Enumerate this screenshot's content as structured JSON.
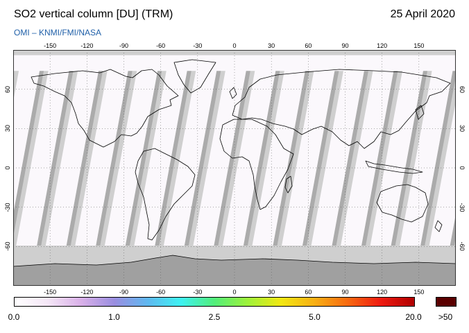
{
  "header": {
    "title": "SO2 vertical column [DU] (TRM)",
    "subtitle": "OMI  –  KNMI/FMI/NASA",
    "date": "25 April 2020"
  },
  "map": {
    "type": "global equirectangular satellite overpass map",
    "lon_ticks": [
      "-150",
      "-120",
      "-90",
      "-60",
      "-30",
      "0",
      "30",
      "60",
      "90",
      "120",
      "150"
    ],
    "lat_ticks": [
      "60",
      "30",
      "0",
      "-30",
      "-60"
    ],
    "lon_range": [
      -180,
      180
    ],
    "lat_range": [
      -90,
      90
    ],
    "grid": "dotted",
    "colors": {
      "no_data": "#cfcfcf",
      "orbit_stripe": "#ababab",
      "measured": "#fbf8fc",
      "coastline": "#000000",
      "antarctica": "#a0a0a0"
    }
  },
  "colorbar": {
    "tick_labels": [
      "0.0",
      "1.0",
      "2.5",
      "5.0",
      "20.0"
    ],
    "overflow_label": ">50",
    "stops": [
      "#ffffff",
      "#f4e6f6",
      "#d9b0e8",
      "#9a8ee0",
      "#5fb8f0",
      "#3ef2f2",
      "#52ee7a",
      "#9ef23a",
      "#f2e812",
      "#f8b014",
      "#f86a10",
      "#ee1a10",
      "#b00000"
    ],
    "overflow_color": "#5a0000"
  }
}
